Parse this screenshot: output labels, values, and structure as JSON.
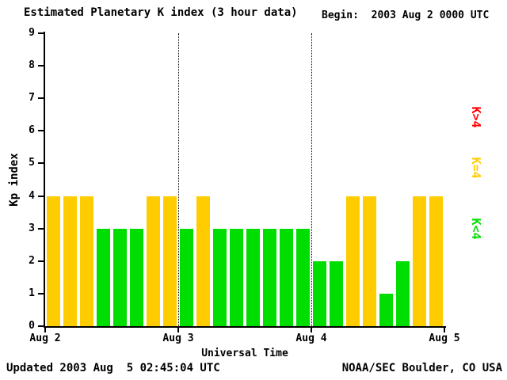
{
  "header": {
    "title": "Estimated Planetary K index (3 hour data)",
    "begin": "Begin:  2003 Aug 2 0000 UTC"
  },
  "footer": {
    "updated": "Updated 2003 Aug  5 02:45:04 UTC",
    "source": "NOAA/SEC Boulder, CO USA"
  },
  "chart_data": {
    "type": "bar",
    "title": "Estimated Planetary K index (3 hour data)",
    "xlabel": "Universal Time",
    "ylabel": "Kp index",
    "ylim": [
      0,
      9
    ],
    "y_ticks": [
      0,
      1,
      2,
      3,
      4,
      5,
      6,
      7,
      8,
      9
    ],
    "x_ticks": [
      "Aug 2",
      "Aug 3",
      "Aug 4",
      "Aug 5"
    ],
    "values": [
      4,
      4,
      4,
      3,
      3,
      3,
      4,
      4,
      3,
      4,
      3,
      3,
      3,
      3,
      3,
      3,
      2,
      2,
      4,
      4,
      1,
      2,
      4,
      4
    ],
    "colors": {
      "k_lt_4": "#00dd00",
      "k_eq_4": "#ffcc00",
      "k_gt_4": "#ff0000"
    },
    "legend": [
      {
        "label": "K>4",
        "color": "#ff0000"
      },
      {
        "label": "K=4",
        "color": "#ffcc00"
      },
      {
        "label": "K<4",
        "color": "#00dd00"
      }
    ],
    "grid": "vertical dotted lines at day boundaries",
    "legend_position": "right"
  }
}
